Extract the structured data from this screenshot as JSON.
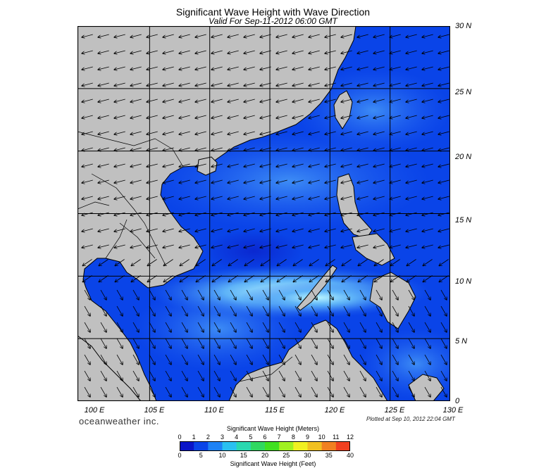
{
  "header": {
    "title": "Significant Wave Height with Wave Direction",
    "subtitle": "Valid For Sep-11-2012 06:00 GMT"
  },
  "map": {
    "lat_labels": [
      "30 N",
      "25 N",
      "20 N",
      "15 N",
      "10 N",
      "5 N",
      "0"
    ],
    "lon_labels": [
      "100 E",
      "105 E",
      "110 E",
      "115 E",
      "120 E",
      "125 E",
      "130 E"
    ],
    "extent": {
      "lon": [
        99,
        130
      ],
      "lat": [
        0,
        30
      ]
    },
    "grid_lon": [
      105,
      110,
      115,
      120,
      125
    ],
    "grid_lat": [
      5,
      10,
      15,
      20,
      25
    ],
    "colors": {
      "land": "#c0c0c0",
      "sea_low": "#0a44e8",
      "sea_mid": "#3d8cf5",
      "sea_high": "#b8f5ff"
    },
    "arrow_icon": "wave-direction-arrow-icon"
  },
  "footer": {
    "brand": "oceanweather inc.",
    "plotted": "Plotted at Sep 10, 2012 22:04 GMT"
  },
  "colorbar": {
    "meters_title": "Significant Wave Height (Meters)",
    "feet_title": "Significant Wave Height (Feet)",
    "meters_ticks": [
      "0",
      "1",
      "2",
      "3",
      "4",
      "5",
      "6",
      "7",
      "8",
      "9",
      "10",
      "11",
      "12"
    ],
    "feet_ticks": [
      "0",
      "5",
      "10",
      "15",
      "20",
      "25",
      "30",
      "35",
      "40"
    ],
    "colors": [
      "#0a14c8",
      "#0a44e8",
      "#1e82f5",
      "#2ac0f0",
      "#2ad8b0",
      "#30d860",
      "#40e020",
      "#a0f020",
      "#f0f020",
      "#f0c020",
      "#f08020",
      "#f04020"
    ]
  }
}
